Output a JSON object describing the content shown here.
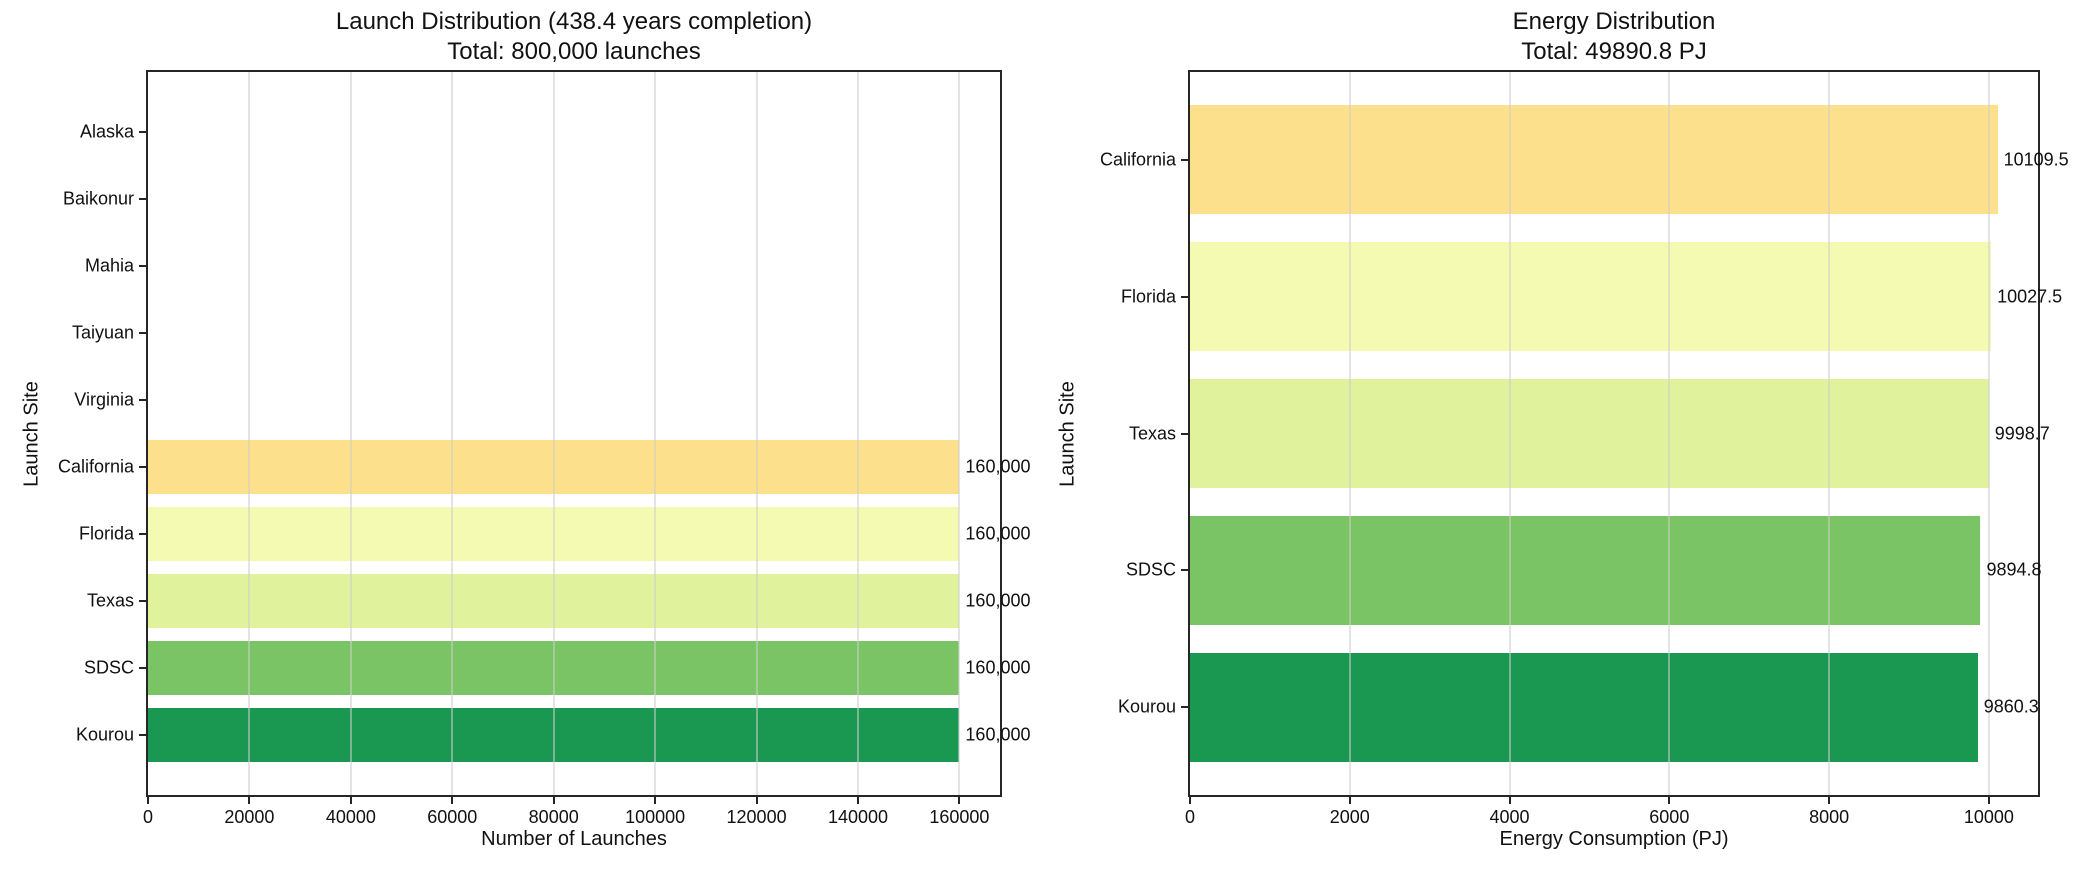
{
  "figure": {
    "background": "#ffffff",
    "text_color": "#111111",
    "spine_color": "#262626",
    "grid_color": "#e0e0e0"
  },
  "chart_data": [
    {
      "type": "bar",
      "orientation": "horizontal",
      "title": "Launch Distribution (438.4 years completion)",
      "subtitle": "Total: 800,000 launches",
      "xlabel": "Number of Launches",
      "ylabel": "Launch Site",
      "categories": [
        "Alaska",
        "Baikonur",
        "Mahia",
        "Taiyuan",
        "Virginia",
        "California",
        "Florida",
        "Texas",
        "SDSC",
        "Kourou"
      ],
      "values": [
        0,
        0,
        0,
        0,
        0,
        160000,
        160000,
        160000,
        160000,
        160000
      ],
      "bar_labels": [
        "",
        "",
        "",
        "",
        "",
        "160,000",
        "160,000",
        "160,000",
        "160,000",
        "160,000"
      ],
      "bar_colors": [
        "",
        "",
        "",
        "",
        "",
        "#fde08b",
        "#f5fab3",
        "#e0f29b",
        "#7ac465",
        "#1a9750"
      ],
      "xticks": [
        0,
        20000,
        40000,
        60000,
        80000,
        100000,
        120000,
        140000,
        160000
      ],
      "xtick_labels": [
        "0",
        "20000",
        "40000",
        "60000",
        "80000",
        "100000",
        "120000",
        "140000",
        "160000"
      ],
      "xlim": [
        0,
        168000
      ],
      "grid": true,
      "legend": null
    },
    {
      "type": "bar",
      "orientation": "horizontal",
      "title": "Energy Distribution",
      "subtitle": "Total: 49890.8 PJ",
      "xlabel": "Energy Consumption (PJ)",
      "ylabel": "Launch Site",
      "categories": [
        "California",
        "Florida",
        "Texas",
        "SDSC",
        "Kourou"
      ],
      "values": [
        10109.5,
        10027.5,
        9998.7,
        9894.8,
        9860.3
      ],
      "bar_labels": [
        "10109.5",
        "10027.5",
        "9998.7",
        "9894.8",
        "9860.3"
      ],
      "bar_colors": [
        "#fde08b",
        "#f5fab3",
        "#e0f29b",
        "#7ac465",
        "#1a9750"
      ],
      "xticks": [
        0,
        2000,
        4000,
        6000,
        8000,
        10000
      ],
      "xtick_labels": [
        "0",
        "2000",
        "4000",
        "6000",
        "8000",
        "10000"
      ],
      "xlim": [
        0,
        10615
      ],
      "grid": true,
      "legend": null
    }
  ]
}
